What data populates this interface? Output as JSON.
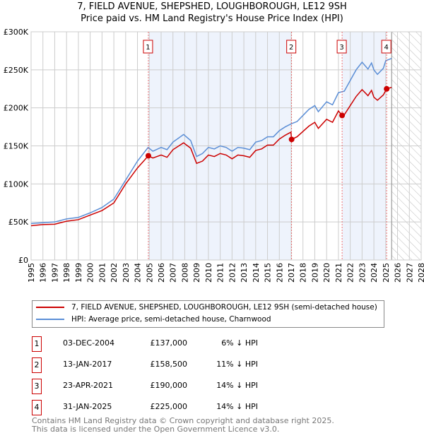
{
  "chart_data": {
    "type": "line",
    "title": "7, FIELD AVENUE, SHEPSHED, LOUGHBOROUGH, LE12 9SH",
    "subtitle": "Price paid vs. HM Land Registry's House Price Index (HPI)",
    "xlim": [
      1995,
      2028
    ],
    "ylim": [
      0,
      300000
    ],
    "x_ticks": [
      "1995",
      "1996",
      "1997",
      "1998",
      "1999",
      "2000",
      "2001",
      "2002",
      "2003",
      "2004",
      "2005",
      "2006",
      "2007",
      "2008",
      "2009",
      "2010",
      "2011",
      "2012",
      "2013",
      "2014",
      "2015",
      "2016",
      "2017",
      "2018",
      "2019",
      "2020",
      "2021",
      "2022",
      "2023",
      "2024",
      "2025",
      "2026",
      "2027",
      "2028"
    ],
    "y_ticks": [
      {
        "v": 0,
        "l": "£0"
      },
      {
        "v": 50000,
        "l": "£50K"
      },
      {
        "v": 100000,
        "l": "£100K"
      },
      {
        "v": 150000,
        "l": "£150K"
      },
      {
        "v": 200000,
        "l": "£200K"
      },
      {
        "v": 250000,
        "l": "£250K"
      },
      {
        "v": 300000,
        "l": "£300K"
      }
    ],
    "grid": true,
    "forecast_start": 2025.5,
    "shaded_ranges": [
      [
        2004.92,
        2017.04
      ],
      [
        2021.31,
        2025.08
      ]
    ],
    "hpi": {
      "name": "HPI: Average price, semi-detached house, Charnwood",
      "color": "#5b8ed6",
      "x": [
        1995,
        1996,
        1997,
        1998,
        1999,
        2000,
        2001,
        2002,
        2003,
        2004,
        2004.9,
        2005.3,
        2006,
        2006.5,
        2007,
        2007.9,
        2008.5,
        2009,
        2009.5,
        2010,
        2010.5,
        2011,
        2011.5,
        2012,
        2012.5,
        2013,
        2013.5,
        2014,
        2014.5,
        2015,
        2015.5,
        2016,
        2016.5,
        2017,
        2017.5,
        2018,
        2018.5,
        2019,
        2019.3,
        2020,
        2020.5,
        2021,
        2021.5,
        2022,
        2022.5,
        2023,
        2023.5,
        2023.8,
        2024,
        2024.3,
        2024.8,
        2025,
        2025.5
      ],
      "y": [
        48000,
        49000,
        50000,
        54000,
        56000,
        62000,
        69000,
        80000,
        105000,
        130000,
        148000,
        143000,
        148000,
        145000,
        155000,
        165000,
        157000,
        136000,
        140000,
        148000,
        146000,
        150000,
        148000,
        143000,
        148000,
        147000,
        145000,
        155000,
        157000,
        162000,
        162000,
        170000,
        175000,
        179000,
        182000,
        190000,
        198000,
        203000,
        195000,
        208000,
        204000,
        220000,
        222000,
        236000,
        250000,
        260000,
        251000,
        259000,
        250000,
        244000,
        252000,
        262000,
        265000
      ]
    },
    "property": {
      "name": "7, FIELD AVENUE, SHEPSHED, LOUGHBOROUGH, LE12 9SH (semi-detached house)",
      "color": "#cc0000",
      "x": [
        1995,
        1996,
        1997,
        1998,
        1999,
        2000,
        2001,
        2002,
        2003,
        2004,
        2004.92,
        2005.3,
        2006,
        2006.5,
        2007,
        2007.9,
        2008.5,
        2009,
        2009.5,
        2010,
        2010.5,
        2011,
        2011.5,
        2012,
        2012.5,
        2013,
        2013.5,
        2014,
        2014.5,
        2015,
        2015.5,
        2016,
        2016.5,
        2016.98,
        2017.04,
        2017.5,
        2018,
        2018.5,
        2019,
        2019.3,
        2020,
        2020.5,
        2021,
        2021.31,
        2021.5,
        2022,
        2022.5,
        2023,
        2023.5,
        2023.8,
        2024,
        2024.3,
        2024.8,
        2025.08,
        2025.5
      ],
      "y": [
        45000,
        46500,
        47000,
        51000,
        53000,
        59000,
        65000,
        75000,
        100000,
        121000,
        137000,
        134000,
        138000,
        135000,
        145000,
        154000,
        147000,
        127000,
        130000,
        138000,
        136000,
        140000,
        138000,
        133000,
        138000,
        137000,
        135000,
        144000,
        146000,
        151000,
        151000,
        159000,
        164000,
        168000,
        158500,
        162000,
        169000,
        176000,
        181000,
        173000,
        185000,
        181000,
        196000,
        190000,
        191000,
        203000,
        215000,
        224000,
        216000,
        223000,
        214000,
        210000,
        217000,
        225000,
        227000
      ]
    },
    "sales": [
      {
        "n": "1",
        "x": 2004.92,
        "date": "03-DEC-2004",
        "price": 137000,
        "price_label": "£137,000",
        "diff": "6% ↓ HPI"
      },
      {
        "n": "2",
        "x": 2017.04,
        "date": "13-JAN-2017",
        "price": 158500,
        "price_label": "£158,500",
        "diff": "11% ↓ HPI"
      },
      {
        "n": "3",
        "x": 2021.31,
        "date": "23-APR-2021",
        "price": 190000,
        "price_label": "£190,000",
        "diff": "14% ↓ HPI"
      },
      {
        "n": "4",
        "x": 2025.08,
        "date": "31-JAN-2025",
        "price": 225000,
        "price_label": "£225,000",
        "diff": "14% ↓ HPI"
      }
    ]
  },
  "footer": [
    "Contains HM Land Registry data © Crown copyright and database right 2025.",
    "This data is licensed under the Open Government Licence v3.0."
  ]
}
